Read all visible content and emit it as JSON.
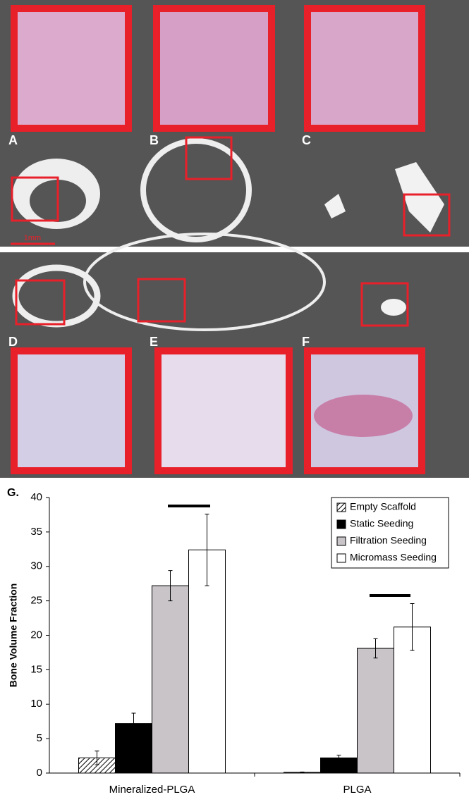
{
  "panels": {
    "labels": [
      "A",
      "B",
      "C",
      "D",
      "E",
      "F"
    ],
    "scale_bar": "1mm"
  },
  "chart_data": {
    "type": "bar",
    "panel_label": "G.",
    "ylabel": "Bone Volume Fraction",
    "categories": [
      "Mineralized-PLGA",
      "PLGA"
    ],
    "series": [
      {
        "name": "Empty Scaffold",
        "color": "hatch",
        "values": [
          2.2,
          0.1
        ],
        "errors": [
          1.0,
          0.05
        ]
      },
      {
        "name": "Static Seeding",
        "color": "#000000",
        "values": [
          7.2,
          2.2
        ],
        "errors": [
          1.5,
          0.4
        ]
      },
      {
        "name": "Filtration Seeding",
        "color": "#c8c4c8",
        "values": [
          27.2,
          18.1
        ],
        "errors": [
          2.2,
          1.4
        ]
      },
      {
        "name": "Micromass Seeding",
        "color": "#ffffff",
        "values": [
          32.4,
          21.2
        ],
        "errors": [
          5.2,
          3.4
        ]
      }
    ],
    "ylim": [
      0,
      40
    ],
    "yticks": [
      0,
      5,
      10,
      15,
      20,
      25,
      30,
      35,
      40
    ],
    "legend": "top right"
  }
}
